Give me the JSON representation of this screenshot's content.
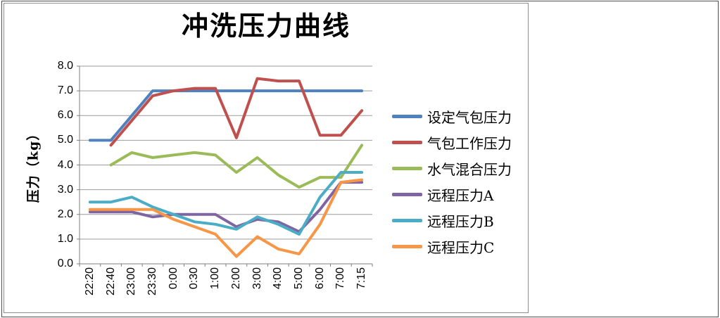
{
  "frame": {
    "background": "#ffffff",
    "outer_border_color": "#4d4d4d",
    "chart_area_border_color": "#8f8f8f"
  },
  "axes": {
    "grid_color": "#9b9b9b",
    "axis_color": "#7f7f7f",
    "text_color": "#000000"
  },
  "chart_data": {
    "type": "line",
    "title": "冲洗压力曲线",
    "ylabel": "压力（kg）",
    "xlabel": "",
    "ylim": [
      0.0,
      8.0
    ],
    "ytick_step": 1.0,
    "ytick_labels": [
      "8.0",
      "7.0",
      "6.0",
      "5.0",
      "4.0",
      "3.0",
      "2.0",
      "1.0",
      "0.0"
    ],
    "grid": true,
    "legend_position": "right",
    "categories": [
      "22:20",
      "22:40",
      "23:00",
      "23:30",
      "0:00",
      "0:30",
      "1:00",
      "2:00",
      "3:00",
      "4:00",
      "5:00",
      "6:00",
      "7:00",
      "7:15"
    ],
    "series": [
      {
        "name": "设定气包压力",
        "color": "#4F81BD",
        "values": [
          5.0,
          5.0,
          6.0,
          7.0,
          7.0,
          7.0,
          7.0,
          7.0,
          7.0,
          7.0,
          7.0,
          7.0,
          7.0,
          7.0
        ]
      },
      {
        "name": "气包工作压力",
        "color": "#C0504D",
        "values": [
          null,
          4.8,
          5.8,
          6.8,
          7.0,
          7.1,
          7.1,
          5.1,
          7.5,
          7.4,
          7.4,
          5.2,
          5.2,
          6.2
        ]
      },
      {
        "name": "水气混合压力",
        "color": "#9BBB59",
        "values": [
          null,
          4.0,
          4.5,
          4.3,
          4.4,
          4.5,
          4.4,
          3.7,
          4.3,
          3.6,
          3.1,
          3.5,
          3.5,
          4.8
        ]
      },
      {
        "name": "远程压力A",
        "color": "#8064A2",
        "values": [
          2.1,
          2.1,
          2.1,
          1.9,
          2.0,
          2.0,
          2.0,
          1.5,
          1.8,
          1.7,
          1.3,
          2.2,
          3.3,
          3.3
        ]
      },
      {
        "name": "远程压力B",
        "color": "#4BACC6",
        "values": [
          2.5,
          2.5,
          2.7,
          2.3,
          2.0,
          1.7,
          1.6,
          1.4,
          1.9,
          1.6,
          1.2,
          2.7,
          3.7,
          3.7
        ]
      },
      {
        "name": "远程压力C",
        "color": "#F79646",
        "values": [
          2.2,
          2.2,
          2.2,
          2.2,
          1.8,
          1.5,
          1.2,
          0.3,
          1.1,
          0.6,
          0.4,
          1.6,
          3.3,
          3.4
        ]
      }
    ]
  }
}
